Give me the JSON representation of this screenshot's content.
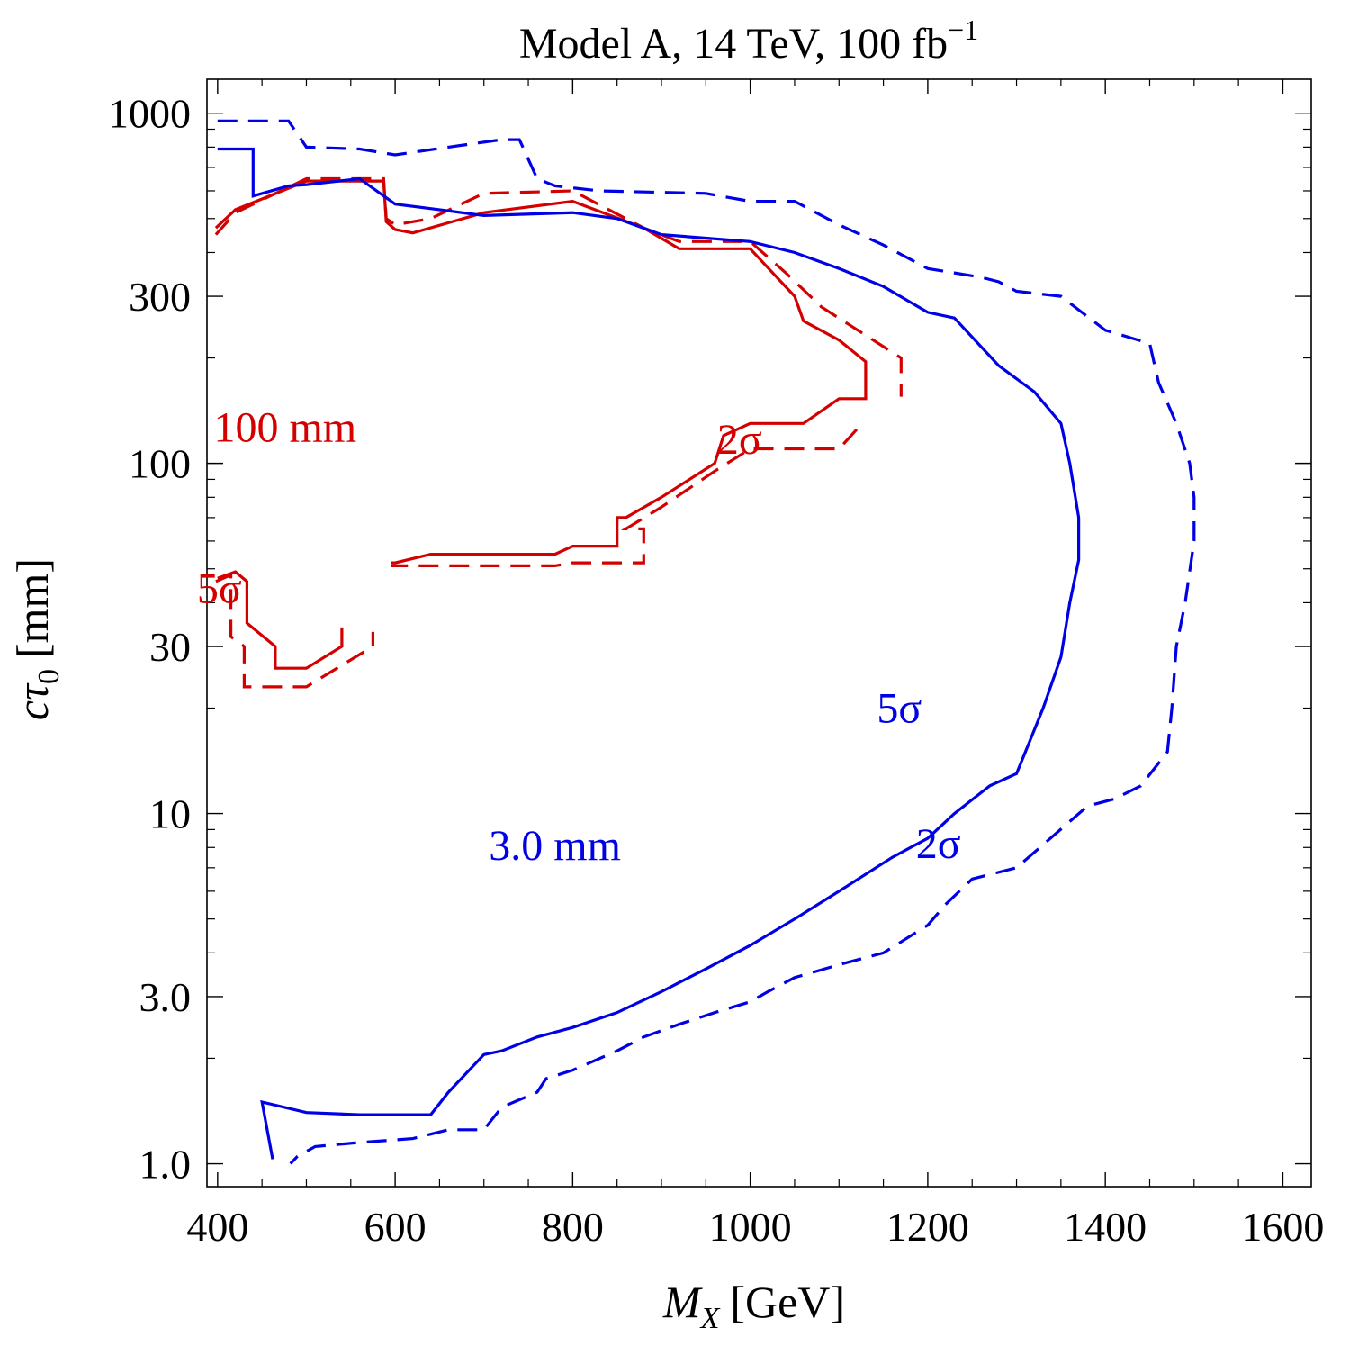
{
  "chart_data": {
    "type": "line",
    "title": "Model A, 14 TeV, 100 fb",
    "title_superscript": "−1",
    "xlabel": "M",
    "xlabel_subscript": "X",
    "xlabel_unit": "[GeV]",
    "ylabel": "cτ",
    "ylabel_subscript": "0",
    "ylabel_unit": "[mm]",
    "x_scale": "linear",
    "y_scale": "log",
    "xlim": [
      388,
      1632
    ],
    "ylim": [
      0.86,
      1250
    ],
    "x_ticks": [
      400,
      600,
      800,
      1000,
      1200,
      1400,
      1600
    ],
    "x_tick_labels": [
      "400",
      "600",
      "800",
      "1000",
      "1200",
      "1400",
      "1600"
    ],
    "y_ticks": [
      1,
      3,
      10,
      30,
      100,
      300,
      1000
    ],
    "y_tick_labels": [
      "1.0",
      "3.0",
      "10",
      "30",
      "100",
      "300",
      "1000"
    ],
    "grid": false,
    "legend": "none",
    "colors": {
      "red": "#d40000",
      "blue": "#0000e6",
      "axis": "#000000"
    },
    "series": [
      {
        "color": "#d40000",
        "style": "solid",
        "points": [
          [
            398,
            470
          ],
          [
            420,
            530
          ],
          [
            500,
            640
          ],
          [
            587,
            640
          ],
          [
            590,
            490
          ],
          [
            600,
            465
          ],
          [
            620,
            455
          ],
          [
            700,
            520
          ],
          [
            800,
            560
          ],
          [
            880,
            470
          ],
          [
            920,
            410
          ],
          [
            960,
            410
          ],
          [
            1000,
            410
          ],
          [
            1050,
            300
          ],
          [
            1060,
            255
          ],
          [
            1100,
            225
          ],
          [
            1130,
            195
          ],
          [
            1130,
            153
          ],
          [
            1100,
            153
          ],
          [
            1060,
            130
          ],
          [
            1000,
            130
          ],
          [
            970,
            120
          ],
          [
            960,
            100
          ],
          [
            900,
            80
          ],
          [
            860,
            70
          ],
          [
            850,
            70
          ],
          [
            850,
            58
          ],
          [
            800,
            58
          ],
          [
            780,
            55
          ],
          [
            640,
            55
          ],
          [
            600,
            52
          ],
          [
            595,
            52
          ]
        ]
      },
      {
        "color": "#d40000",
        "style": "solid",
        "points": [
          [
            400,
            47
          ],
          [
            420,
            49
          ],
          [
            433,
            46
          ],
          [
            433,
            35
          ],
          [
            465,
            30
          ],
          [
            465,
            26
          ],
          [
            500,
            26
          ],
          [
            540,
            30
          ],
          [
            540,
            34
          ]
        ]
      },
      {
        "color": "#d40000",
        "style": "dashed",
        "points": [
          [
            398,
            450
          ],
          [
            420,
            520
          ],
          [
            500,
            650
          ],
          [
            587,
            650
          ],
          [
            590,
            500
          ],
          [
            600,
            480
          ],
          [
            640,
            500
          ],
          [
            700,
            590
          ],
          [
            800,
            600
          ],
          [
            880,
            470
          ],
          [
            920,
            430
          ],
          [
            1000,
            430
          ],
          [
            1040,
            350
          ],
          [
            1080,
            280
          ],
          [
            1170,
            200
          ],
          [
            1170,
            155
          ]
        ]
      },
      {
        "color": "#d40000",
        "style": "dashed",
        "points": [
          [
            1120,
            125
          ],
          [
            1100,
            110
          ],
          [
            1000,
            110
          ],
          [
            960,
            95
          ],
          [
            900,
            75
          ],
          [
            860,
            65
          ],
          [
            880,
            65
          ],
          [
            880,
            52
          ],
          [
            800,
            52
          ],
          [
            780,
            51
          ],
          [
            600,
            51
          ],
          [
            595,
            51
          ]
        ]
      },
      {
        "color": "#d40000",
        "style": "dashed",
        "points": [
          [
            398,
            46
          ],
          [
            415,
            48
          ],
          [
            415,
            32
          ],
          [
            430,
            30
          ],
          [
            430,
            23
          ],
          [
            500,
            23
          ],
          [
            545,
            27
          ],
          [
            575,
            30
          ],
          [
            575,
            33
          ]
        ]
      },
      {
        "color": "#0000e6",
        "style": "solid",
        "points": [
          [
            400,
            790
          ],
          [
            440,
            790
          ],
          [
            440,
            700
          ],
          [
            440,
            580
          ],
          [
            480,
            620
          ],
          [
            500,
            625
          ],
          [
            560,
            650
          ],
          [
            600,
            550
          ],
          [
            650,
            530
          ],
          [
            700,
            510
          ],
          [
            800,
            520
          ],
          [
            850,
            500
          ],
          [
            900,
            450
          ],
          [
            1000,
            430
          ],
          [
            1050,
            400
          ],
          [
            1100,
            360
          ],
          [
            1150,
            320
          ],
          [
            1200,
            270
          ],
          [
            1230,
            260
          ],
          [
            1280,
            190
          ],
          [
            1320,
            160
          ],
          [
            1350,
            130
          ],
          [
            1360,
            100
          ],
          [
            1370,
            70
          ],
          [
            1370,
            53
          ],
          [
            1360,
            40
          ],
          [
            1350,
            28
          ],
          [
            1330,
            20
          ],
          [
            1310,
            15
          ],
          [
            1300,
            13
          ],
          [
            1270,
            12
          ],
          [
            1230,
            10
          ],
          [
            1200,
            8.5
          ],
          [
            1160,
            7.5
          ],
          [
            1100,
            6
          ],
          [
            1050,
            5
          ],
          [
            1000,
            4.2
          ],
          [
            950,
            3.6
          ],
          [
            900,
            3.1
          ],
          [
            850,
            2.7
          ],
          [
            800,
            2.45
          ],
          [
            760,
            2.3
          ],
          [
            720,
            2.1
          ],
          [
            700,
            2.05
          ],
          [
            660,
            1.6
          ],
          [
            640,
            1.38
          ],
          [
            560,
            1.38
          ],
          [
            500,
            1.4
          ],
          [
            450,
            1.5
          ],
          [
            462,
            1.03
          ]
        ]
      },
      {
        "color": "#0000e6",
        "style": "dashed",
        "points": [
          [
            400,
            950
          ],
          [
            480,
            950
          ],
          [
            500,
            800
          ],
          [
            560,
            790
          ],
          [
            600,
            760
          ],
          [
            660,
            800
          ],
          [
            720,
            840
          ],
          [
            740,
            840
          ],
          [
            760,
            650
          ],
          [
            780,
            620
          ],
          [
            830,
            600
          ],
          [
            950,
            590
          ],
          [
            1000,
            560
          ],
          [
            1050,
            560
          ],
          [
            1100,
            480
          ],
          [
            1150,
            420
          ],
          [
            1200,
            360
          ],
          [
            1260,
            340
          ],
          [
            1280,
            330
          ],
          [
            1300,
            310
          ],
          [
            1350,
            300
          ],
          [
            1400,
            240
          ],
          [
            1450,
            220
          ],
          [
            1460,
            170
          ],
          [
            1480,
            130
          ],
          [
            1495,
            100
          ],
          [
            1500,
            80
          ],
          [
            1500,
            60
          ],
          [
            1490,
            40
          ],
          [
            1480,
            30
          ],
          [
            1475,
            20
          ],
          [
            1470,
            15
          ],
          [
            1440,
            12
          ],
          [
            1410,
            11
          ],
          [
            1380,
            10.5
          ],
          [
            1300,
            7
          ],
          [
            1250,
            6.5
          ],
          [
            1220,
            5.5
          ],
          [
            1200,
            4.8
          ],
          [
            1150,
            4
          ],
          [
            1100,
            3.7
          ],
          [
            1050,
            3.4
          ],
          [
            1020,
            3.1
          ],
          [
            1000,
            2.9
          ],
          [
            960,
            2.7
          ],
          [
            920,
            2.5
          ],
          [
            880,
            2.3
          ],
          [
            850,
            2.1
          ],
          [
            800,
            1.85
          ],
          [
            770,
            1.75
          ],
          [
            760,
            1.6
          ],
          [
            720,
            1.45
          ],
          [
            700,
            1.25
          ],
          [
            660,
            1.25
          ],
          [
            620,
            1.18
          ],
          [
            560,
            1.15
          ],
          [
            510,
            1.12
          ],
          [
            490,
            1.05
          ],
          [
            482,
            1.0
          ]
        ]
      }
    ],
    "annotations": [
      {
        "text": "100 mm",
        "color": "#d40000",
        "x": 476,
        "y": 127
      },
      {
        "text": "2σ",
        "color": "#d40000",
        "x": 988,
        "y": 117
      },
      {
        "text": "5σ",
        "color": "#d40000",
        "x": 402,
        "y": 44
      },
      {
        "text": "3.0 mm",
        "color": "#0000e6",
        "x": 780,
        "y": 8.1
      },
      {
        "text": "5σ",
        "color": "#0000e6",
        "x": 1168,
        "y": 20
      },
      {
        "text": "2σ",
        "color": "#0000e6",
        "x": 1212,
        "y": 8.2
      }
    ]
  }
}
